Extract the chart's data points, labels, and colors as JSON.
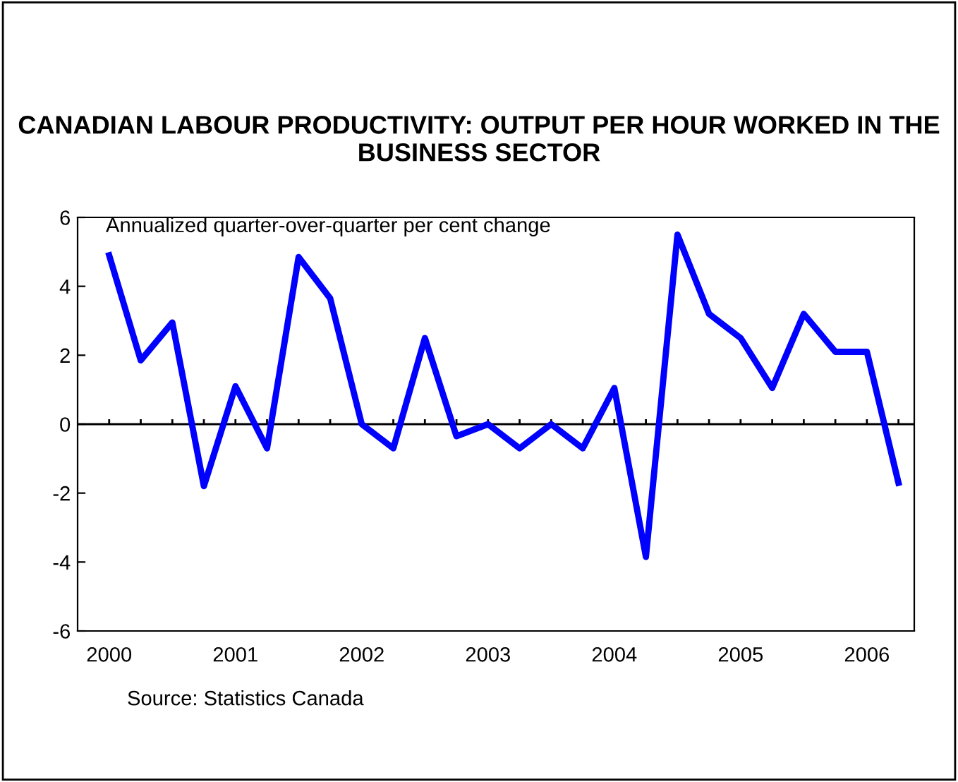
{
  "chart_data": {
    "type": "line",
    "title": "CANADIAN LABOUR PRODUCTIVITY: OUTPUT PER HOUR WORKED IN THE BUSINESS SECTOR",
    "ylabel": "Annualized quarter-over-quarter per cent change",
    "annotations": [
      "Source: Statistics Canada"
    ],
    "x": [
      2000,
      2000.25,
      2000.5,
      2000.75,
      2001,
      2001.25,
      2001.5,
      2001.75,
      2002,
      2002.25,
      2002.5,
      2002.75,
      2003,
      2003.25,
      2003.5,
      2003.75,
      2004,
      2004.25,
      2004.5,
      2004.75,
      2005,
      2005.25,
      2005.5,
      2005.75,
      2006,
      2006.25
    ],
    "series": [
      {
        "color": "#0000ff",
        "values": [
          4.9,
          1.85,
          2.95,
          -1.8,
          1.1,
          -0.7,
          4.85,
          3.65,
          0.0,
          -0.7,
          2.5,
          -0.35,
          0.0,
          -0.7,
          0.0,
          -0.7,
          1.05,
          -3.85,
          5.5,
          3.2,
          2.5,
          1.05,
          3.2,
          2.1,
          2.1,
          -1.7
        ]
      }
    ],
    "xlim": [
      1999.75,
      2006.375
    ],
    "xticks": [
      {
        "value": 2000,
        "label": "2000"
      },
      {
        "value": 2000.25,
        "label": null
      },
      {
        "value": 2000.5,
        "label": null
      },
      {
        "value": 2000.75,
        "label": null
      },
      {
        "value": 2001,
        "label": "2001"
      },
      {
        "value": 2001.25,
        "label": null
      },
      {
        "value": 2001.5,
        "label": null
      },
      {
        "value": 2001.75,
        "label": null
      },
      {
        "value": 2002,
        "label": "2002"
      },
      {
        "value": 2002.25,
        "label": null
      },
      {
        "value": 2002.5,
        "label": null
      },
      {
        "value": 2002.75,
        "label": null
      },
      {
        "value": 2003,
        "label": "2003"
      },
      {
        "value": 2003.25,
        "label": null
      },
      {
        "value": 2003.5,
        "label": null
      },
      {
        "value": 2003.75,
        "label": null
      },
      {
        "value": 2004,
        "label": "2004"
      },
      {
        "value": 2004.25,
        "label": null
      },
      {
        "value": 2004.5,
        "label": null
      },
      {
        "value": 2004.75,
        "label": null
      },
      {
        "value": 2005,
        "label": "2005"
      },
      {
        "value": 2005.25,
        "label": null
      },
      {
        "value": 2005.5,
        "label": null
      },
      {
        "value": 2005.75,
        "label": null
      },
      {
        "value": 2006,
        "label": "2006"
      },
      {
        "value": 2006.25,
        "label": null
      }
    ],
    "ylim": [
      -6,
      6
    ],
    "yticks": [
      -6,
      -4,
      -2,
      0,
      2,
      4,
      6
    ],
    "ref_lines": [
      {
        "axis": "y",
        "value": 0,
        "color": "#000000"
      }
    ],
    "grid": false,
    "legend": false,
    "marker": "none",
    "line_style": "solid"
  }
}
